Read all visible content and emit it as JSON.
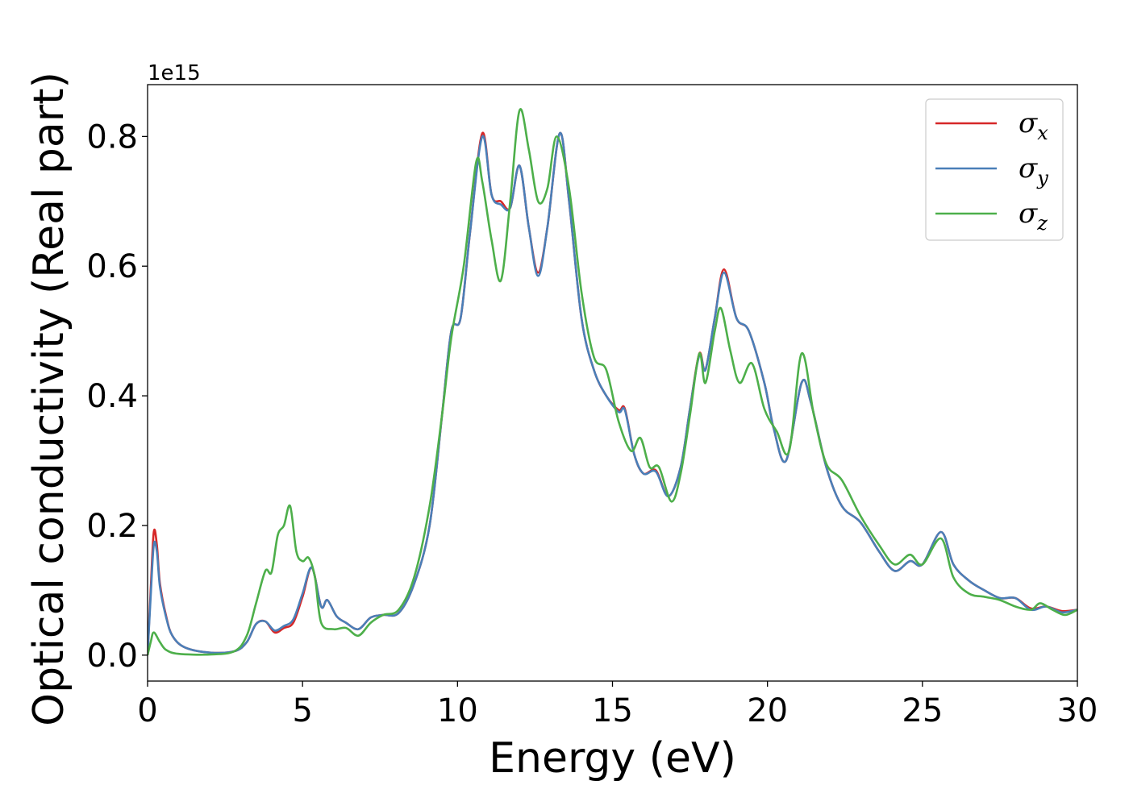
{
  "chart_data": {
    "type": "line",
    "title": "",
    "xlabel": "Energy (eV)",
    "ylabel": "Optical conductivity (Real part)",
    "y_offset_label": "1e15",
    "xlim": [
      0,
      30
    ],
    "ylim": [
      -0.04,
      0.88
    ],
    "x_ticks": [
      0,
      5,
      10,
      15,
      20,
      25,
      30
    ],
    "x_tick_labels": [
      "0",
      "5",
      "10",
      "15",
      "20",
      "25",
      "30"
    ],
    "y_ticks": [
      0.0,
      0.2,
      0.4,
      0.6,
      0.8
    ],
    "y_tick_labels": [
      "0.0",
      "0.2",
      "0.4",
      "0.6",
      "0.8"
    ],
    "grid": false,
    "legend_position": "top-right",
    "series": [
      {
        "name": "σx",
        "legend_symbol": "σ",
        "legend_sub": "x",
        "color": "#d62728",
        "points": [
          [
            0,
            0.0
          ],
          [
            0.1,
            0.1
          ],
          [
            0.2,
            0.19
          ],
          [
            0.3,
            0.17
          ],
          [
            0.4,
            0.11
          ],
          [
            0.6,
            0.06
          ],
          [
            0.8,
            0.03
          ],
          [
            1.2,
            0.012
          ],
          [
            2.0,
            0.004
          ],
          [
            2.8,
            0.006
          ],
          [
            3.2,
            0.02
          ],
          [
            3.5,
            0.048
          ],
          [
            3.8,
            0.052
          ],
          [
            4.1,
            0.035
          ],
          [
            4.4,
            0.042
          ],
          [
            4.7,
            0.05
          ],
          [
            5.0,
            0.09
          ],
          [
            5.3,
            0.135
          ],
          [
            5.6,
            0.075
          ],
          [
            5.8,
            0.085
          ],
          [
            6.1,
            0.06
          ],
          [
            6.4,
            0.05
          ],
          [
            6.8,
            0.04
          ],
          [
            7.2,
            0.058
          ],
          [
            7.6,
            0.062
          ],
          [
            8.1,
            0.065
          ],
          [
            8.6,
            0.11
          ],
          [
            9.1,
            0.2
          ],
          [
            9.5,
            0.37
          ],
          [
            9.8,
            0.5
          ],
          [
            10.1,
            0.52
          ],
          [
            10.4,
            0.65
          ],
          [
            10.8,
            0.805
          ],
          [
            11.1,
            0.71
          ],
          [
            11.4,
            0.7
          ],
          [
            11.7,
            0.69
          ],
          [
            12.0,
            0.755
          ],
          [
            12.3,
            0.66
          ],
          [
            12.6,
            0.59
          ],
          [
            12.9,
            0.66
          ],
          [
            13.3,
            0.805
          ],
          [
            13.6,
            0.7
          ],
          [
            14.0,
            0.52
          ],
          [
            14.4,
            0.44
          ],
          [
            14.8,
            0.4
          ],
          [
            15.2,
            0.378
          ],
          [
            15.4,
            0.38
          ],
          [
            15.7,
            0.31
          ],
          [
            16.0,
            0.28
          ],
          [
            16.4,
            0.285
          ],
          [
            16.8,
            0.245
          ],
          [
            17.2,
            0.29
          ],
          [
            17.5,
            0.38
          ],
          [
            17.8,
            0.465
          ],
          [
            18.0,
            0.44
          ],
          [
            18.3,
            0.52
          ],
          [
            18.6,
            0.595
          ],
          [
            19.0,
            0.52
          ],
          [
            19.4,
            0.5
          ],
          [
            19.9,
            0.42
          ],
          [
            20.2,
            0.35
          ],
          [
            20.6,
            0.3
          ],
          [
            21.1,
            0.42
          ],
          [
            21.4,
            0.39
          ],
          [
            21.9,
            0.29
          ],
          [
            22.4,
            0.23
          ],
          [
            23.0,
            0.205
          ],
          [
            23.6,
            0.16
          ],
          [
            24.1,
            0.13
          ],
          [
            24.6,
            0.145
          ],
          [
            25.0,
            0.14
          ],
          [
            25.6,
            0.19
          ],
          [
            26.0,
            0.14
          ],
          [
            26.5,
            0.115
          ],
          [
            27.0,
            0.1
          ],
          [
            27.5,
            0.088
          ],
          [
            28.0,
            0.088
          ],
          [
            28.5,
            0.072
          ],
          [
            29.0,
            0.075
          ],
          [
            29.5,
            0.068
          ],
          [
            30.0,
            0.07
          ]
        ]
      },
      {
        "name": "σy",
        "legend_symbol": "σ",
        "legend_sub": "y",
        "color": "#4a7fb8",
        "points": [
          [
            0,
            0.0
          ],
          [
            0.1,
            0.09
          ],
          [
            0.2,
            0.17
          ],
          [
            0.3,
            0.16
          ],
          [
            0.4,
            0.105
          ],
          [
            0.6,
            0.058
          ],
          [
            0.8,
            0.03
          ],
          [
            1.2,
            0.012
          ],
          [
            2.0,
            0.004
          ],
          [
            2.8,
            0.006
          ],
          [
            3.2,
            0.02
          ],
          [
            3.5,
            0.048
          ],
          [
            3.8,
            0.052
          ],
          [
            4.1,
            0.038
          ],
          [
            4.4,
            0.045
          ],
          [
            4.7,
            0.055
          ],
          [
            5.0,
            0.095
          ],
          [
            5.3,
            0.135
          ],
          [
            5.6,
            0.075
          ],
          [
            5.8,
            0.085
          ],
          [
            6.1,
            0.06
          ],
          [
            6.4,
            0.05
          ],
          [
            6.8,
            0.04
          ],
          [
            7.2,
            0.058
          ],
          [
            7.6,
            0.062
          ],
          [
            8.1,
            0.065
          ],
          [
            8.6,
            0.11
          ],
          [
            9.1,
            0.2
          ],
          [
            9.5,
            0.37
          ],
          [
            9.8,
            0.5
          ],
          [
            10.1,
            0.52
          ],
          [
            10.4,
            0.65
          ],
          [
            10.8,
            0.8
          ],
          [
            11.1,
            0.71
          ],
          [
            11.4,
            0.695
          ],
          [
            11.7,
            0.69
          ],
          [
            12.0,
            0.755
          ],
          [
            12.3,
            0.66
          ],
          [
            12.6,
            0.585
          ],
          [
            12.9,
            0.66
          ],
          [
            13.3,
            0.805
          ],
          [
            13.6,
            0.7
          ],
          [
            14.0,
            0.52
          ],
          [
            14.4,
            0.44
          ],
          [
            14.8,
            0.4
          ],
          [
            15.2,
            0.375
          ],
          [
            15.4,
            0.378
          ],
          [
            15.7,
            0.31
          ],
          [
            16.0,
            0.28
          ],
          [
            16.4,
            0.283
          ],
          [
            16.8,
            0.245
          ],
          [
            17.2,
            0.29
          ],
          [
            17.5,
            0.38
          ],
          [
            17.8,
            0.462
          ],
          [
            18.0,
            0.44
          ],
          [
            18.3,
            0.52
          ],
          [
            18.6,
            0.59
          ],
          [
            19.0,
            0.52
          ],
          [
            19.4,
            0.5
          ],
          [
            19.9,
            0.42
          ],
          [
            20.2,
            0.35
          ],
          [
            20.6,
            0.3
          ],
          [
            21.1,
            0.42
          ],
          [
            21.4,
            0.39
          ],
          [
            21.9,
            0.29
          ],
          [
            22.4,
            0.23
          ],
          [
            23.0,
            0.205
          ],
          [
            23.6,
            0.16
          ],
          [
            24.1,
            0.13
          ],
          [
            24.6,
            0.145
          ],
          [
            25.0,
            0.14
          ],
          [
            25.6,
            0.19
          ],
          [
            26.0,
            0.14
          ],
          [
            26.5,
            0.115
          ],
          [
            27.0,
            0.1
          ],
          [
            27.5,
            0.088
          ],
          [
            28.0,
            0.088
          ],
          [
            28.5,
            0.07
          ],
          [
            29.0,
            0.075
          ],
          [
            29.5,
            0.066
          ],
          [
            30.0,
            0.07
          ]
        ]
      },
      {
        "name": "σz",
        "legend_symbol": "σ",
        "legend_sub": "z",
        "color": "#4daf4a",
        "points": [
          [
            0,
            0.0
          ],
          [
            0.1,
            0.02
          ],
          [
            0.2,
            0.035
          ],
          [
            0.4,
            0.02
          ],
          [
            0.6,
            0.008
          ],
          [
            1.0,
            0.002
          ],
          [
            2.0,
            0.001
          ],
          [
            2.8,
            0.006
          ],
          [
            3.2,
            0.03
          ],
          [
            3.5,
            0.08
          ],
          [
            3.8,
            0.13
          ],
          [
            4.0,
            0.128
          ],
          [
            4.2,
            0.185
          ],
          [
            4.4,
            0.2
          ],
          [
            4.6,
            0.23
          ],
          [
            4.8,
            0.16
          ],
          [
            5.0,
            0.145
          ],
          [
            5.2,
            0.15
          ],
          [
            5.4,
            0.12
          ],
          [
            5.6,
            0.05
          ],
          [
            6.0,
            0.04
          ],
          [
            6.4,
            0.042
          ],
          [
            6.8,
            0.03
          ],
          [
            7.2,
            0.05
          ],
          [
            7.6,
            0.062
          ],
          [
            8.1,
            0.07
          ],
          [
            8.6,
            0.12
          ],
          [
            9.1,
            0.23
          ],
          [
            9.5,
            0.37
          ],
          [
            9.8,
            0.49
          ],
          [
            10.2,
            0.6
          ],
          [
            10.6,
            0.76
          ],
          [
            10.8,
            0.73
          ],
          [
            11.1,
            0.64
          ],
          [
            11.4,
            0.578
          ],
          [
            11.7,
            0.7
          ],
          [
            12.0,
            0.84
          ],
          [
            12.3,
            0.78
          ],
          [
            12.6,
            0.7
          ],
          [
            12.9,
            0.72
          ],
          [
            13.2,
            0.8
          ],
          [
            13.6,
            0.72
          ],
          [
            14.0,
            0.56
          ],
          [
            14.4,
            0.46
          ],
          [
            14.8,
            0.44
          ],
          [
            15.2,
            0.36
          ],
          [
            15.6,
            0.315
          ],
          [
            15.9,
            0.335
          ],
          [
            16.2,
            0.29
          ],
          [
            16.5,
            0.29
          ],
          [
            16.9,
            0.237
          ],
          [
            17.2,
            0.28
          ],
          [
            17.5,
            0.37
          ],
          [
            17.8,
            0.465
          ],
          [
            18.0,
            0.42
          ],
          [
            18.3,
            0.5
          ],
          [
            18.5,
            0.535
          ],
          [
            18.8,
            0.47
          ],
          [
            19.1,
            0.42
          ],
          [
            19.5,
            0.45
          ],
          [
            19.9,
            0.38
          ],
          [
            20.3,
            0.345
          ],
          [
            20.7,
            0.315
          ],
          [
            21.1,
            0.465
          ],
          [
            21.5,
            0.37
          ],
          [
            21.9,
            0.295
          ],
          [
            22.4,
            0.27
          ],
          [
            23.0,
            0.215
          ],
          [
            23.6,
            0.17
          ],
          [
            24.1,
            0.14
          ],
          [
            24.6,
            0.155
          ],
          [
            25.0,
            0.14
          ],
          [
            25.6,
            0.18
          ],
          [
            26.0,
            0.12
          ],
          [
            26.5,
            0.095
          ],
          [
            27.0,
            0.09
          ],
          [
            27.5,
            0.085
          ],
          [
            28.0,
            0.075
          ],
          [
            28.5,
            0.07
          ],
          [
            28.8,
            0.08
          ],
          [
            29.2,
            0.07
          ],
          [
            29.6,
            0.062
          ],
          [
            30.0,
            0.07
          ]
        ]
      }
    ]
  }
}
